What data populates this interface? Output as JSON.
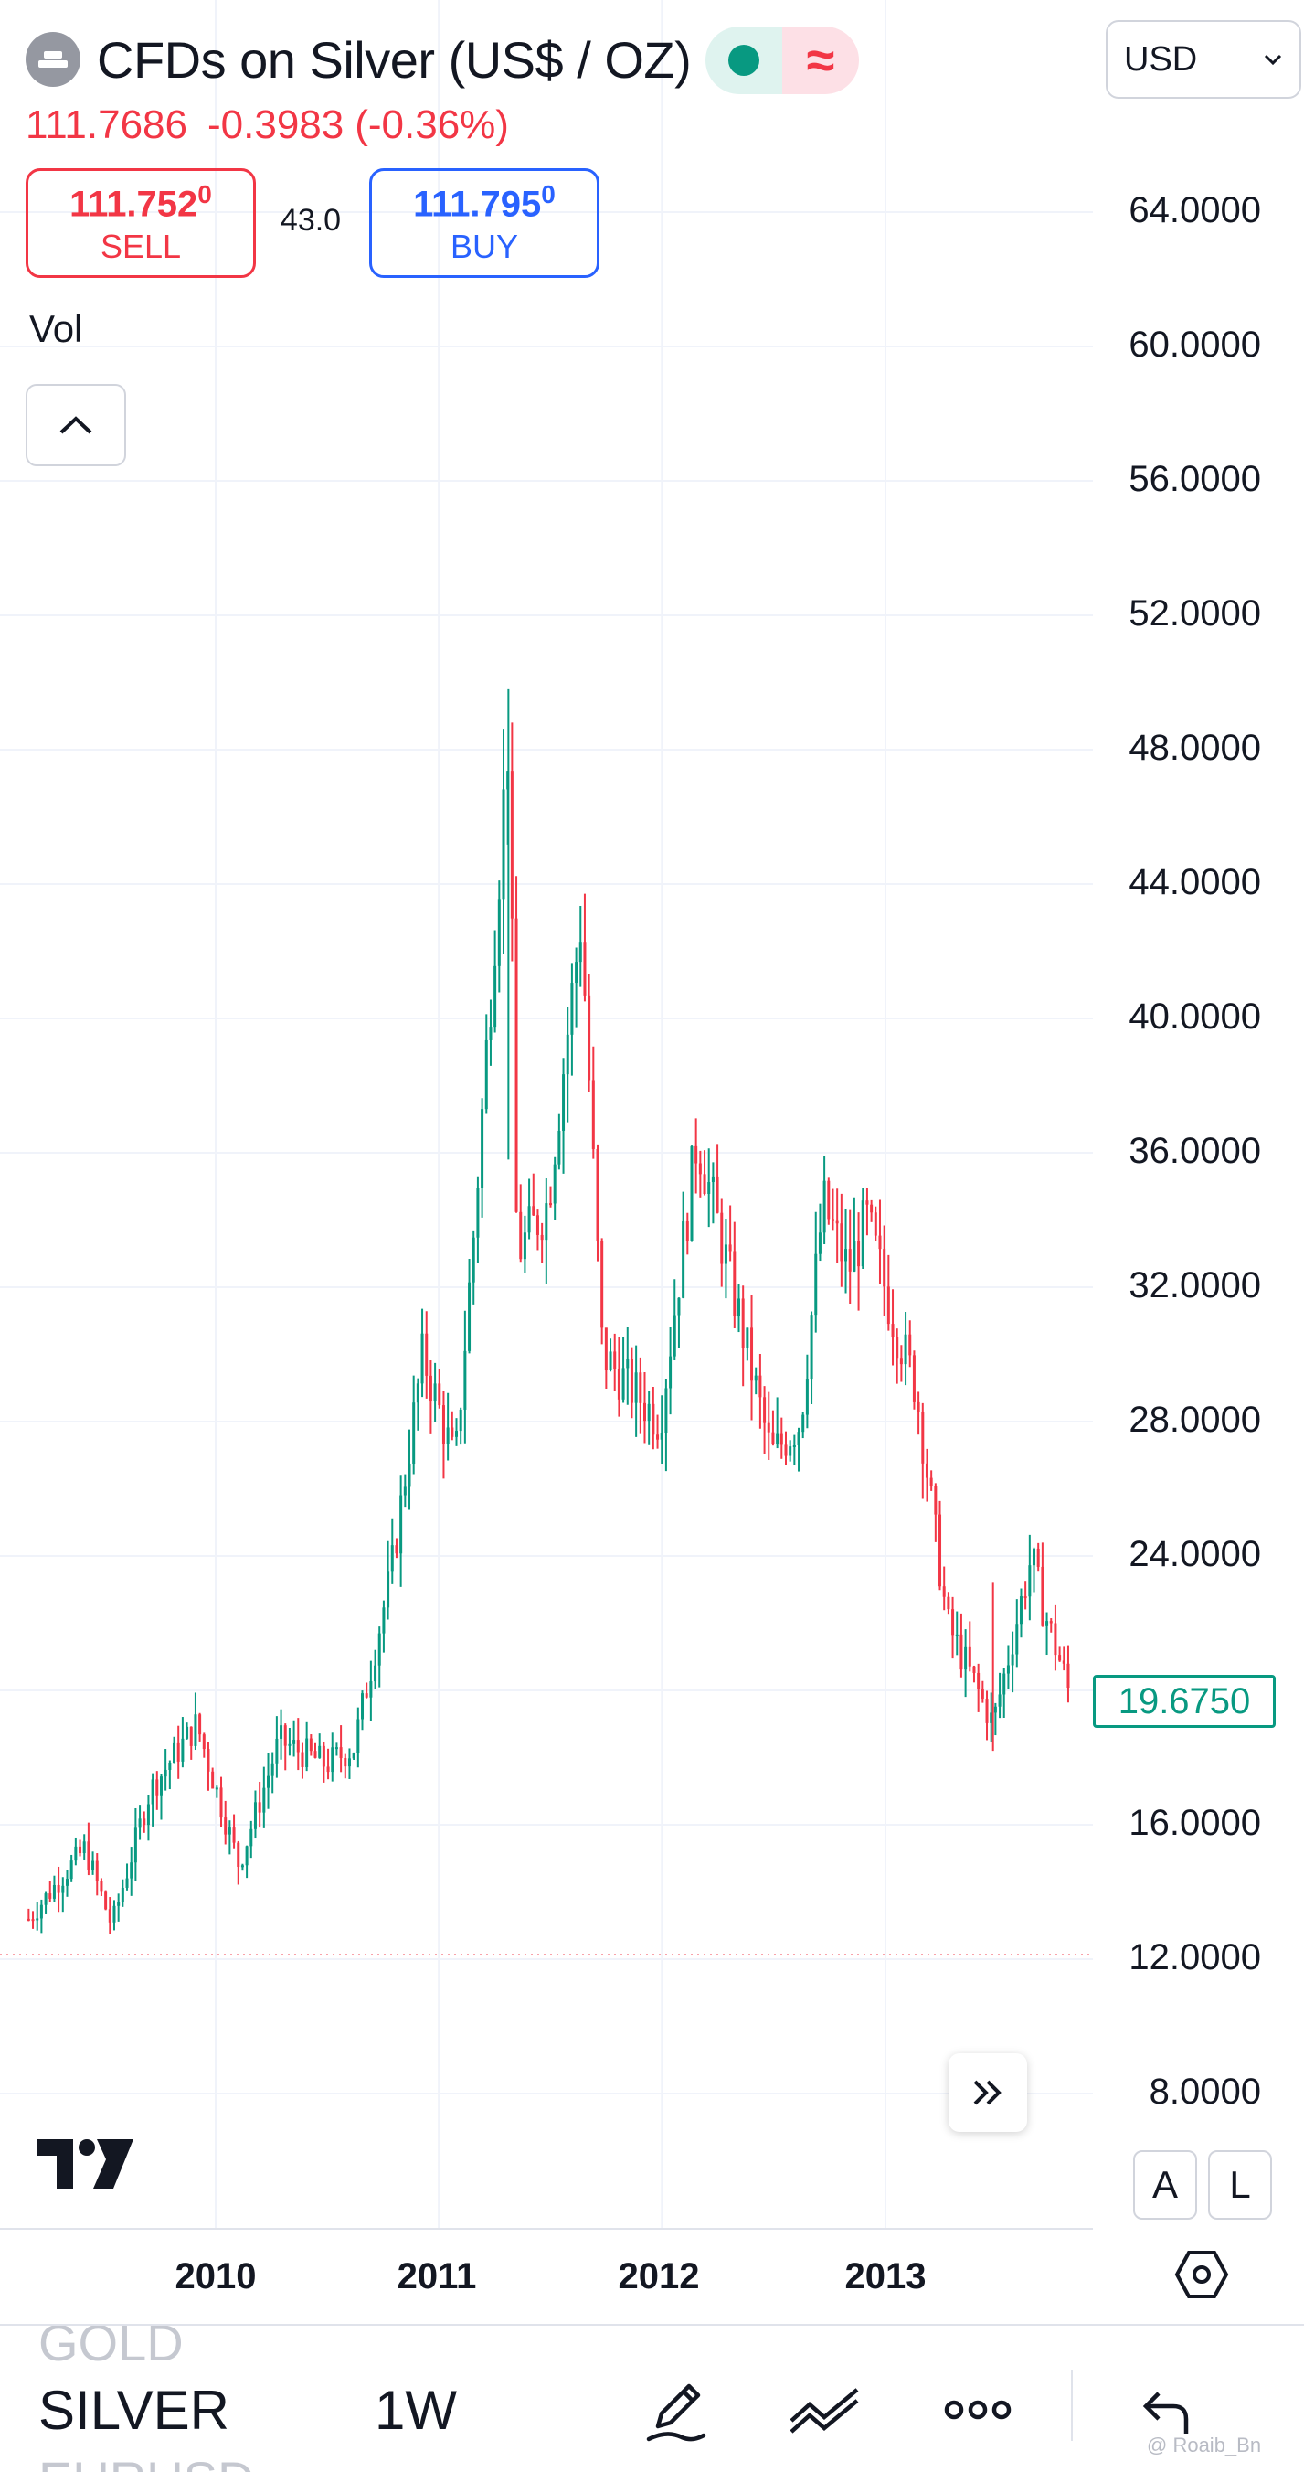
{
  "header": {
    "title": "CFDs on Silver (US$ / OZ)",
    "currency": "USD",
    "quote_price": "111.7686",
    "quote_change": "-0.3983",
    "quote_change_pct": "(-0.36%)",
    "approx_symbol": "≈"
  },
  "trade": {
    "sell_price_main": "111.752",
    "sell_price_sup": "0",
    "sell_label": "SELL",
    "spread": "43.0",
    "buy_price_main": "111.795",
    "buy_price_sup": "0",
    "buy_label": "BUY"
  },
  "indicator": {
    "vol_label": "Vol"
  },
  "scale_buttons": {
    "auto": "A",
    "log": "L"
  },
  "bottom_bar": {
    "ghost_above": "GOLD",
    "symbol": "SILVER",
    "interval": "1W",
    "ghost_below": "EURUSD",
    "watermark": "@ Roaib_Bn"
  },
  "colors": {
    "up": "#089981",
    "down": "#f23645",
    "buy": "#2962ff",
    "grid": "#f0f3fa"
  },
  "icons": [
    "silver-logo-icon",
    "market-open-dot-icon",
    "approx-icon",
    "chevron-down-icon",
    "chevron-up-icon",
    "tradingview-logo-icon",
    "scroll-right-icon",
    "settings-hex-icon",
    "drawing-pen-icon",
    "trend-line-icon",
    "more-icon",
    "undo-icon"
  ],
  "chart_data": {
    "type": "candlestick",
    "interval": "1W",
    "y_axis_ticks": [
      "64.0000",
      "60.0000",
      "56.0000",
      "52.0000",
      "48.0000",
      "44.0000",
      "40.0000",
      "36.0000",
      "32.0000",
      "28.0000",
      "24.0000",
      "16.0000",
      "12.0000",
      "8.0000"
    ],
    "x_axis_ticks": [
      "2010",
      "2011",
      "2012",
      "2013"
    ],
    "last_price_label": "19.6750",
    "ylim": [
      6,
      66
    ],
    "grid": true,
    "close_path": [
      [
        "2009-03-01",
        13.2
      ],
      [
        "2009-06-01",
        15.3
      ],
      [
        "2009-07-15",
        13.0
      ],
      [
        "2009-09-15",
        17.0
      ],
      [
        "2009-12-01",
        19.0
      ],
      [
        "2010-02-08",
        14.8
      ],
      [
        "2010-04-15",
        18.5
      ],
      [
        "2010-07-01",
        17.8
      ],
      [
        "2010-08-15",
        18.3
      ],
      [
        "2010-10-15",
        23.5
      ],
      [
        "2010-12-06",
        30.0
      ],
      [
        "2011-01-28",
        26.7
      ],
      [
        "2011-03-01",
        34.0
      ],
      [
        "2011-04-25",
        48.5
      ],
      [
        "2011-05-09",
        33.0
      ],
      [
        "2011-06-28",
        34.5
      ],
      [
        "2011-08-22",
        43.0
      ],
      [
        "2011-09-26",
        30.0
      ],
      [
        "2011-12-29",
        28.0
      ],
      [
        "2012-02-28",
        36.5
      ],
      [
        "2012-06-28",
        27.0
      ],
      [
        "2012-08-15",
        28.0
      ],
      [
        "2012-09-21",
        34.5
      ],
      [
        "2012-11-01",
        32.5
      ],
      [
        "2012-12-01",
        34.0
      ],
      [
        "2013-01-15",
        31.0
      ],
      [
        "2013-02-20",
        29.0
      ],
      [
        "2013-04-12",
        22.0
      ],
      [
        "2013-06-26",
        19.0
      ],
      [
        "2013-08-28",
        24.0
      ],
      [
        "2013-09-15",
        22.5
      ],
      [
        "2013-10-20",
        20.5
      ],
      [
        "2013-11-01",
        19.7
      ]
    ],
    "notable_points": [
      {
        "label": "high",
        "x": "2011-04-25",
        "y": 49.8
      },
      {
        "label": "low",
        "x": "2013-06-26",
        "y": 18.2
      },
      {
        "label": "last",
        "x": "2013-11-01",
        "y": 19.675
      }
    ]
  }
}
